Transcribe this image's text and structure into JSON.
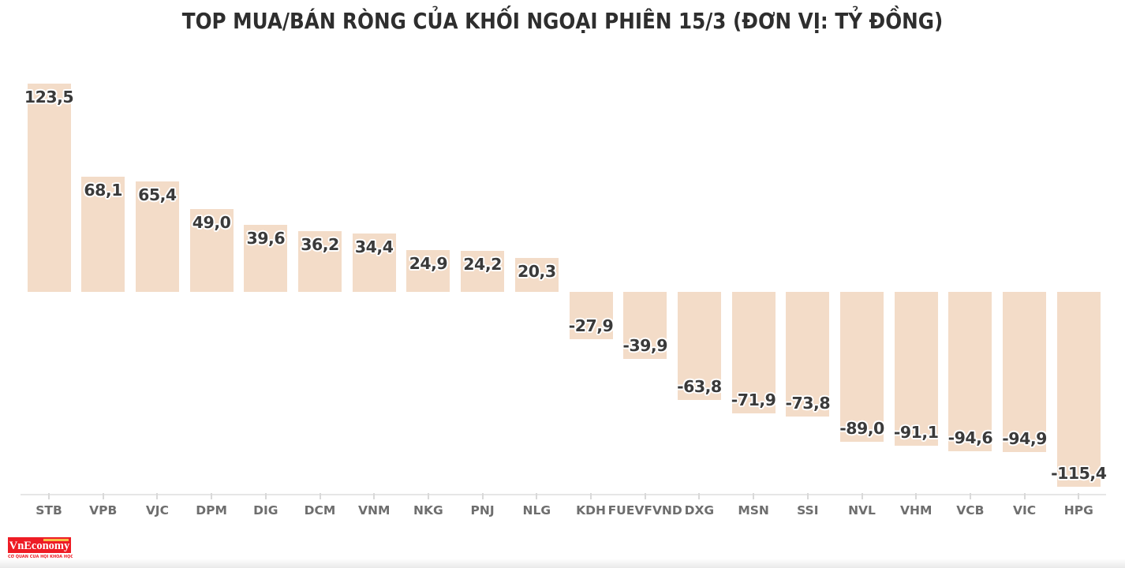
{
  "chart_data": {
    "type": "bar",
    "title": "TOP MUA/BÁN RÒNG CỦA KHỐI NGOẠI PHIÊN 15/3 (ĐƠN VỊ: TỶ ĐỒNG)",
    "categories": [
      "STB",
      "VPB",
      "VJC",
      "DPM",
      "DIG",
      "DCM",
      "VNM",
      "NKG",
      "PNJ",
      "NLG",
      "KDH",
      "FUEVFVND",
      "DXG",
      "MSN",
      "SSI",
      "NVL",
      "VHM",
      "VCB",
      "VIC",
      "HPG"
    ],
    "values": [
      123.5,
      68.1,
      65.4,
      49.0,
      39.6,
      36.2,
      34.4,
      24.9,
      24.2,
      20.3,
      -27.9,
      -39.9,
      -63.8,
      -71.9,
      -73.8,
      -89.0,
      -91.1,
      -94.6,
      -94.9,
      -115.4
    ],
    "labels": [
      "123,5",
      "68,1",
      "65,4",
      "49,0",
      "39,6",
      "36,2",
      "34,4",
      "24,9",
      "24,2",
      "20,3",
      "-27,9",
      "-39,9",
      "-63,8",
      "-71,9",
      "-73,8",
      "-89,0",
      "-91,1",
      "-94,6",
      "-94,9",
      "-115,4"
    ],
    "xlabel": "",
    "ylabel": "",
    "ylim": [
      -125,
      135
    ],
    "grid": false,
    "legend": false,
    "decimal_separator": ",",
    "bar_color": "#f3dcc8",
    "value_label_color": "#3a3a3a",
    "category_label_color": "#6e6e6e",
    "axis_line_color": "#e6e6e6",
    "tick_color": "#d9d9d9",
    "title_color": "#2e2e2e"
  },
  "footer": {
    "logo_text": "VnEconomy",
    "logo_caption": "CƠ QUAN CỦA HỘI KHOA HỌC KINH TẾ VIỆT NAM",
    "logo_bg": "#ee1c25",
    "logo_text_color": "#ffffff",
    "logo_accent_color": "#f7d04b"
  }
}
